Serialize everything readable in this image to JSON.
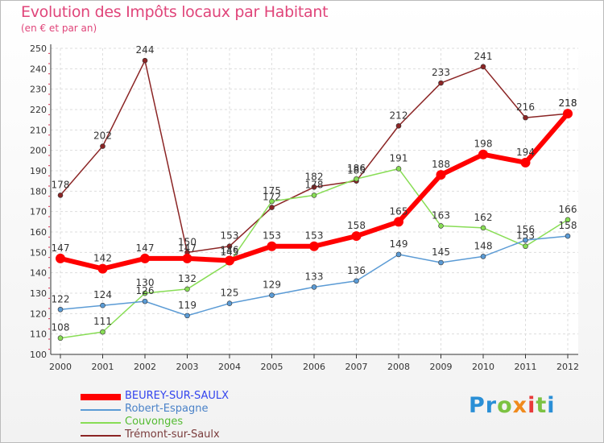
{
  "header": {
    "title": "Evolution des Impôts locaux par Habitant",
    "subtitle": "(en € et par an)"
  },
  "logo": {
    "text": "Proxiti"
  },
  "chart_data": {
    "type": "line",
    "title": "Evolution des Impôts locaux par Habitant",
    "subtitle": "(en € et par an)",
    "x": [
      "2000",
      "2001",
      "2002",
      "2003",
      "2004",
      "2005",
      "2006",
      "2007",
      "2008",
      "2009",
      "2010",
      "2011",
      "2012"
    ],
    "ylim": [
      100,
      250
    ],
    "yticks": [
      100,
      110,
      120,
      130,
      140,
      150,
      160,
      170,
      180,
      190,
      200,
      210,
      220,
      230,
      240,
      250
    ],
    "grid": true,
    "legend_position": "bottom-left",
    "series": [
      {
        "name": "BEUREY-SUR-SAULX",
        "color": "#ff0000",
        "text_color": "#3344ee",
        "width": 6,
        "values": [
          147,
          142,
          147,
          147,
          146,
          153,
          153,
          158,
          165,
          188,
          198,
          194,
          218
        ],
        "labels": [
          "147",
          "142",
          "147",
          "147",
          "146",
          "153",
          "153",
          "158",
          "165",
          "188",
          "198",
          "194",
          "218"
        ]
      },
      {
        "name": "Robert-Espagne",
        "color": "#5b9bd5",
        "text_color": "#4a82c8",
        "width": 1.5,
        "values": [
          122,
          124,
          126,
          119,
          125,
          129,
          133,
          136,
          149,
          145,
          148,
          156,
          158
        ],
        "labels": [
          "122",
          "124",
          "126",
          "119",
          "125",
          "129",
          "133",
          "136",
          "149",
          "145",
          "148",
          "156",
          "158"
        ]
      },
      {
        "name": "Couvonges",
        "color": "#88dd55",
        "text_color": "#55bb33",
        "width": 1.5,
        "values": [
          108,
          111,
          130,
          132,
          145,
          175,
          178,
          186,
          191,
          163,
          162,
          153,
          166
        ],
        "labels": [
          "108",
          "111",
          "130",
          "132",
          "145",
          "175",
          "178",
          "186",
          "191",
          "163",
          "162",
          "153",
          "166"
        ]
      },
      {
        "name": "Trémont-sur-Saulx",
        "color": "#8b2525",
        "text_color": "#7a3b3b",
        "width": 1.5,
        "values": [
          178,
          202,
          244,
          150,
          153,
          172,
          182,
          185,
          212,
          233,
          241,
          216,
          218
        ],
        "labels": [
          "178",
          "202",
          "244",
          "150",
          "153",
          "172",
          "182",
          "185",
          "212",
          "233",
          "241",
          "216",
          "218"
        ]
      }
    ]
  }
}
